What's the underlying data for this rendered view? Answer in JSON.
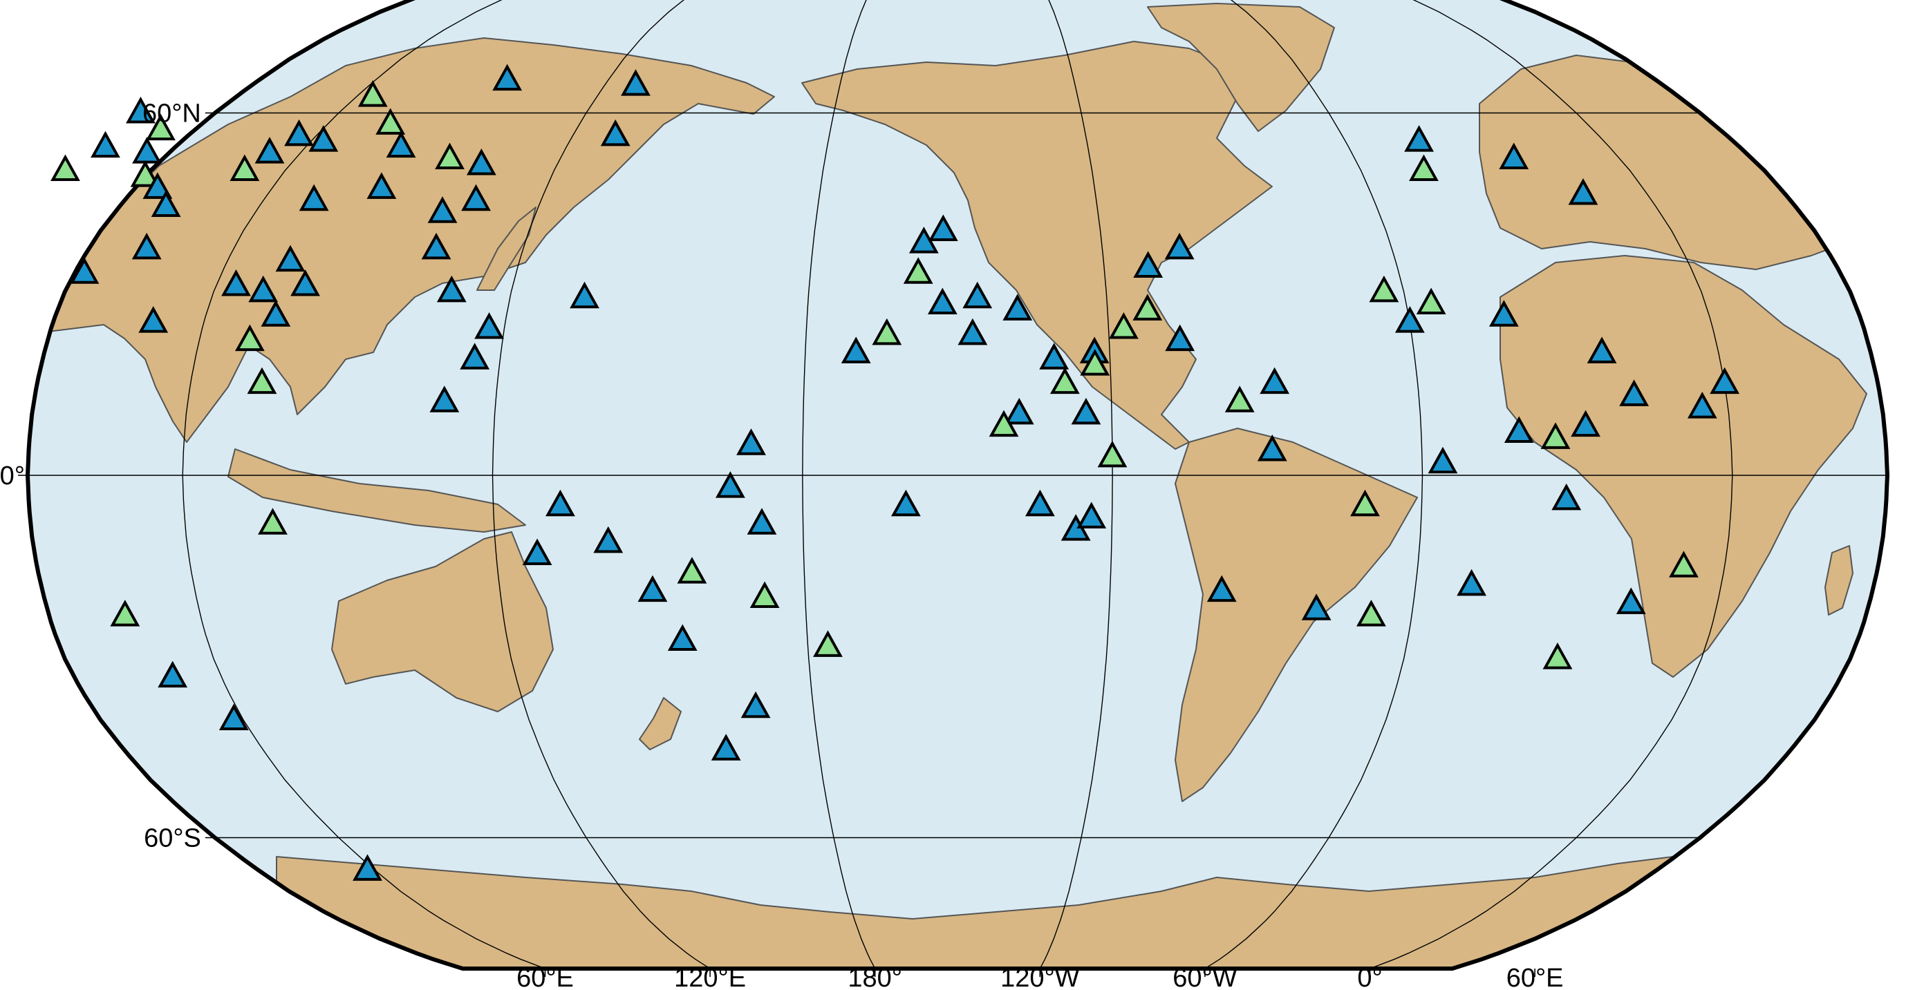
{
  "map": {
    "projection": "Robinson",
    "central_meridian": "150°W",
    "colors": {
      "ocean": "#d9eaf2",
      "land": "#d8b784",
      "coastline": "#555555",
      "frame": "#000000",
      "station_blue": "#1a93cc",
      "station_green": "#8fe08f"
    },
    "latitude_labels": [
      "60°N",
      "0°",
      "60°S"
    ],
    "longitude_labels": [
      "60°E",
      "120°E",
      "180°",
      "120°W",
      "60°W",
      "0°",
      "60°E"
    ],
    "legend": "none",
    "symbol": "triangle-icon"
  }
}
